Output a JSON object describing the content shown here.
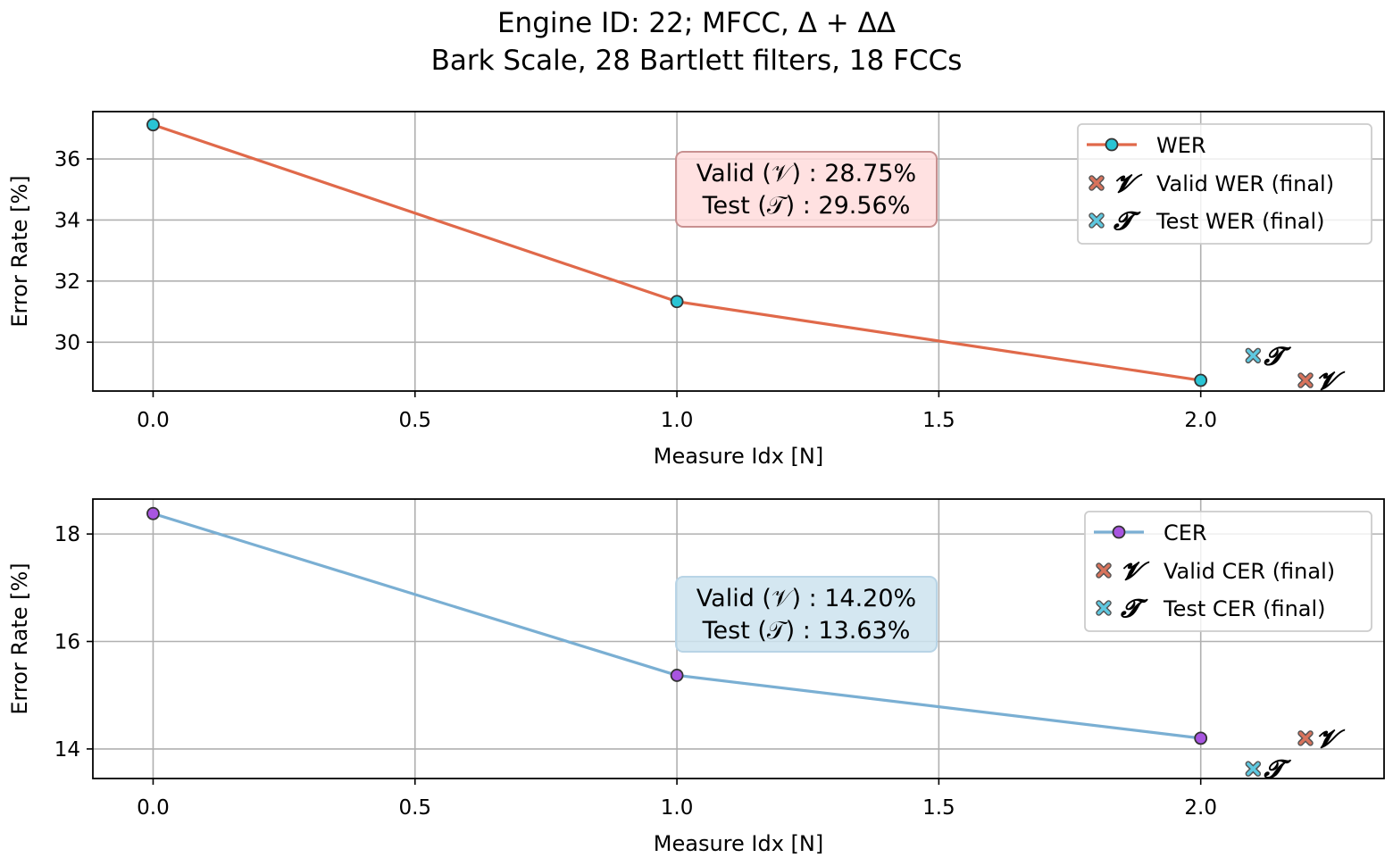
{
  "title": {
    "line1": "Engine ID: 22; MFCC, Δ + ΔΔ",
    "line2": "Bark Scale, 28 Bartlett filters, 18 FCCs"
  },
  "colors": {
    "wer_line": "#e0694a",
    "wer_marker": "#29c4d4",
    "cer_line": "#7aafd3",
    "cer_marker": "#a855e0",
    "valid_x": "#d8735c",
    "test_x": "#5ec8e0",
    "wer_box_fill": "#ffdcdc",
    "wer_box_edge": "#c89090",
    "cer_box_fill": "#cde3ee",
    "cer_box_edge": "#b8d4e6",
    "grid": "#b0b0b0"
  },
  "chart_data": [
    {
      "type": "line",
      "key": "wer",
      "xlabel": "Measure Idx [N]",
      "ylabel": "Error Rate [%]",
      "xlim": [
        -0.115,
        2.35
      ],
      "ylim": [
        28.4,
        37.55
      ],
      "xticks": [
        "0.0",
        "0.5",
        "1.0",
        "1.5",
        "2.0"
      ],
      "xtick_values": [
        0.0,
        0.5,
        1.0,
        1.5,
        2.0
      ],
      "yticks": [
        "30",
        "32",
        "34",
        "36"
      ],
      "ytick_values": [
        30,
        32,
        34,
        36
      ],
      "grid": true,
      "legend_position": "top-right",
      "series": [
        {
          "name": "WER",
          "x": [
            0,
            1,
            2
          ],
          "y": [
            37.12,
            31.33,
            28.75
          ]
        }
      ],
      "final_markers": [
        {
          "name": "Valid WER (final)",
          "symbol": "𝓥",
          "x": 2.2,
          "y": 28.75
        },
        {
          "name": "Test WER (final)",
          "symbol": "𝓣",
          "x": 2.1,
          "y": 29.56
        }
      ],
      "annotation": {
        "line1": "Valid (𝒱) :  28.75%",
        "line2": "Test (𝒯) :  29.56%"
      }
    },
    {
      "type": "line",
      "key": "cer",
      "xlabel": "Measure Idx [N]",
      "ylabel": "Error Rate [%]",
      "xlim": [
        -0.115,
        2.35
      ],
      "ylim": [
        13.45,
        18.65
      ],
      "xticks": [
        "0.0",
        "0.5",
        "1.0",
        "1.5",
        "2.0"
      ],
      "xtick_values": [
        0.0,
        0.5,
        1.0,
        1.5,
        2.0
      ],
      "yticks": [
        "14",
        "16",
        "18"
      ],
      "ytick_values": [
        14,
        16,
        18
      ],
      "grid": true,
      "legend_position": "top-right",
      "series": [
        {
          "name": "CER",
          "x": [
            0,
            1,
            2
          ],
          "y": [
            18.38,
            15.37,
            14.2
          ]
        }
      ],
      "final_markers": [
        {
          "name": "Valid CER (final)",
          "symbol": "𝓥",
          "x": 2.2,
          "y": 14.2
        },
        {
          "name": "Test CER (final)",
          "symbol": "𝓣",
          "x": 2.1,
          "y": 13.63
        }
      ],
      "annotation": {
        "line1": "Valid (𝒱) :  14.20%",
        "line2": "Test (𝒯) :  13.63%"
      }
    }
  ]
}
